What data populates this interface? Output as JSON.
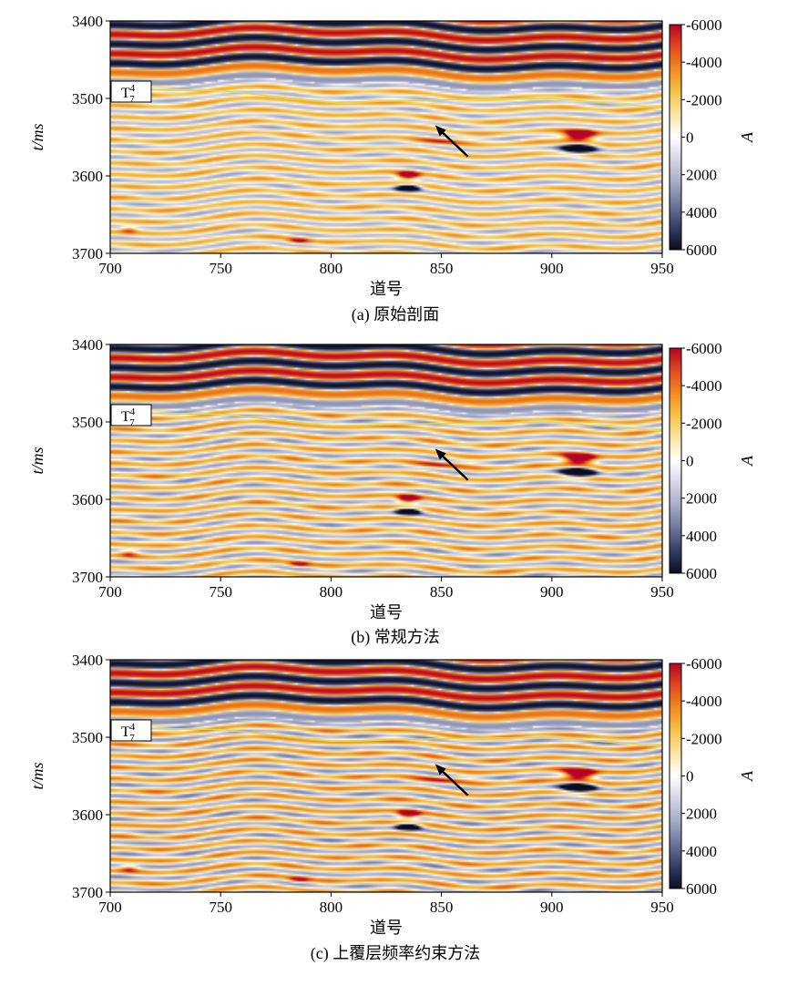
{
  "chart_data": [
    {
      "type": "heatmap",
      "caption": "(a) 原始剖面",
      "xlabel": "道号",
      "ylabel": "t/ms",
      "xlim": [
        700,
        950
      ],
      "ylim": [
        3700,
        3400
      ],
      "x_ticks": [
        "700",
        "750",
        "800",
        "850",
        "900",
        "950"
      ],
      "y_ticks": [
        "3400",
        "3500",
        "3600",
        "3700"
      ],
      "colorbar": {
        "label": "A",
        "range": [
          -6000,
          6000
        ],
        "ticks": [
          "-6000",
          "-4000",
          "-2000",
          "0",
          "2000",
          "4000",
          "6000"
        ]
      },
      "horizon_label": {
        "text": "T",
        "sup": "4",
        "sub": "7"
      },
      "horizon": {
        "x": [
          700,
          750,
          800,
          850,
          900,
          950
        ],
        "t": [
          3488,
          3490,
          3505,
          3502,
          3500,
          3512
        ]
      },
      "annotation": "arrow",
      "variant": "original"
    },
    {
      "type": "heatmap",
      "caption": "(b) 常规方法",
      "xlabel": "道号",
      "ylabel": "t/ms",
      "xlim": [
        700,
        950
      ],
      "ylim": [
        3700,
        3400
      ],
      "x_ticks": [
        "700",
        "750",
        "800",
        "850",
        "900",
        "950"
      ],
      "y_ticks": [
        "3400",
        "3500",
        "3600",
        "3700"
      ],
      "colorbar": {
        "label": "A",
        "range": [
          -6000,
          6000
        ],
        "ticks": [
          "-6000",
          "-4000",
          "-2000",
          "0",
          "2000",
          "4000",
          "6000"
        ]
      },
      "horizon_label": {
        "text": "T",
        "sup": "4",
        "sub": "7"
      },
      "horizon": {
        "x": [
          700,
          750,
          800,
          850,
          900,
          950
        ],
        "t": [
          3488,
          3490,
          3505,
          3502,
          3500,
          3512
        ]
      },
      "annotation": "arrow",
      "variant": "conventional"
    },
    {
      "type": "heatmap",
      "caption": "(c) 上覆层频率约束方法",
      "xlabel": "道号",
      "ylabel": "t/ms",
      "xlim": [
        700,
        950
      ],
      "ylim": [
        3700,
        3400
      ],
      "x_ticks": [
        "700",
        "750",
        "800",
        "850",
        "900",
        "950"
      ],
      "y_ticks": [
        "3400",
        "3500",
        "3600",
        "3700"
      ],
      "colorbar": {
        "label": "A",
        "range": [
          -6000,
          6000
        ],
        "ticks": [
          "-6000",
          "-4000",
          "-2000",
          "0",
          "2000",
          "4000",
          "6000"
        ]
      },
      "horizon_label": {
        "text": "T",
        "sup": "4",
        "sub": "7"
      },
      "horizon": {
        "x": [
          700,
          750,
          800,
          850,
          900,
          950
        ],
        "t": [
          3488,
          3490,
          3505,
          3502,
          3500,
          3512
        ]
      },
      "annotation": "arrow",
      "variant": "constrained"
    }
  ],
  "colors": {
    "colormap": [
      "#b40426",
      "#e34a1f",
      "#f08c22",
      "#f6c34a",
      "#fbe5a6",
      "#ffffff",
      "#d4d6e4",
      "#a7abc6",
      "#6f749d",
      "#383d66",
      "#0b0c1e"
    ],
    "horizon": "#e0d84a",
    "arrow": "#000000"
  }
}
